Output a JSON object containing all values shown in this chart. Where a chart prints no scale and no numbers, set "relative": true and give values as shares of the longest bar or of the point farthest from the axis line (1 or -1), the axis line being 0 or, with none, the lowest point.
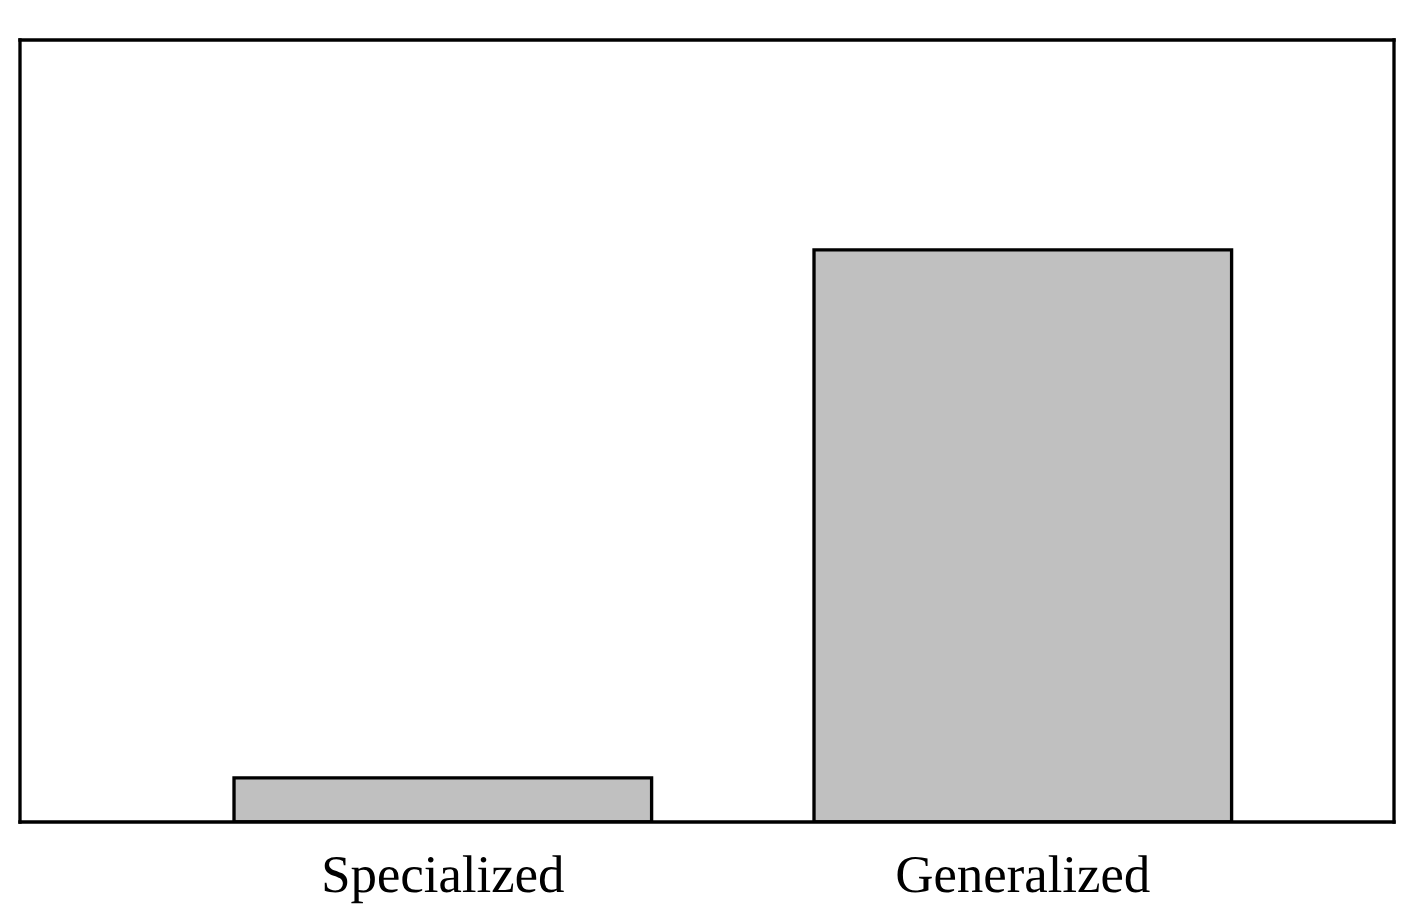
{
  "chart_data": {
    "type": "bar",
    "relative": true,
    "categories": [
      "Specialized",
      "Generalized"
    ],
    "values": [
      0.077,
      1
    ],
    "color": "#c0c0c0"
  }
}
